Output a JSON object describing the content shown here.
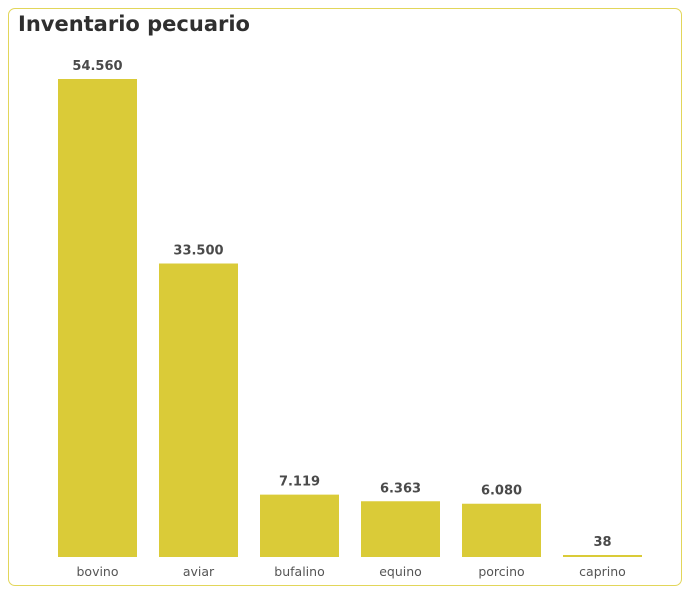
{
  "chart_data": {
    "type": "bar",
    "title": "Inventario pecuario",
    "xlabel": "",
    "ylabel": "",
    "categories": [
      "bovino",
      "aviar",
      "bufalino",
      "equino",
      "porcino",
      "caprino"
    ],
    "values": [
      54560,
      33500,
      7119,
      6363,
      6080,
      38
    ],
    "value_labels": [
      "54.560",
      "33.500",
      "7.119",
      "6.363",
      "6.080",
      "38"
    ],
    "ylim": [
      0,
      54560
    ],
    "grid": false,
    "legend": "none",
    "bar_color": "#dacb38"
  }
}
